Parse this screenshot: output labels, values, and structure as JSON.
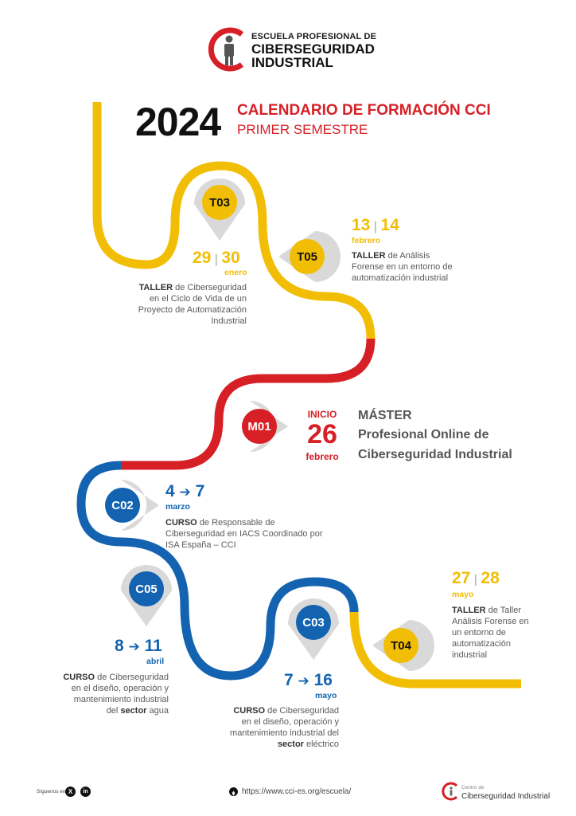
{
  "header": {
    "brand_line1": "ESCUELA PROFESIONAL DE",
    "brand_line2": "CIBERSEGURIDAD",
    "brand_line3": "INDUSTRIAL",
    "year": "2024",
    "title": "CALENDARIO DE FORMACIÓN CCI",
    "subtitle": "PRIMER SEMESTRE"
  },
  "colors": {
    "yellow": "#f2be05",
    "red": "#d71f26",
    "blue": "#1463b1"
  },
  "events": {
    "t03": {
      "code": "T03",
      "d1": "29",
      "d2": "30",
      "month": "enero",
      "kind": "TALLER",
      "text": " de Ciberseguridad en el Ciclo de Vida de un Proyecto de Automatización Industrial"
    },
    "t05": {
      "code": "T05",
      "d1": "13",
      "d2": "14",
      "month": "febrero",
      "kind": "TALLER",
      "text": " de Análisis Forense en un entorno de automatización industrial"
    },
    "m01": {
      "code": "M01",
      "start_label": "INICIO",
      "day": "26",
      "month": "febrero",
      "l1": "MÁSTER",
      "l2": "Profesional Online de",
      "l3": "Ciberseguridad Industrial"
    },
    "c02": {
      "code": "C02",
      "d1": "4",
      "d2": "7",
      "month": "marzo",
      "kind": "CURSO",
      "text": " de Responsable de Ciberseguridad en IACS Coordinado por ISA España – CCI"
    },
    "c05": {
      "code": "C05",
      "d1": "8",
      "d2": "11",
      "month": "abril",
      "kind": "CURSO",
      "text": " de Ciberseguridad en el diseño, operación y mantenimiento industrial del ",
      "sector": "sector",
      "tail": " agua"
    },
    "c03": {
      "code": "C03",
      "d1": "7",
      "d2": "16",
      "month": "mayo",
      "kind": "CURSO",
      "text": " de Ciberseguridad en el diseño, operación y mantenimiento industrial del ",
      "sector": "sector",
      "tail": " eléctrico"
    },
    "t04": {
      "code": "T04",
      "d1": "27",
      "d2": "28",
      "month": "mayo",
      "kind": "TALLER",
      "text": " de Taller Análisis Forense en un entorno de automatización industrial"
    }
  },
  "footer": {
    "follow": "Síguenos en:",
    "x_icon": "x-icon",
    "linkedin_icon": "linkedin-icon",
    "url": "https://www.cci-es.org/escuela/",
    "centro_line1": "Centro de",
    "centro_line2": "Ciberseguridad Industrial"
  }
}
